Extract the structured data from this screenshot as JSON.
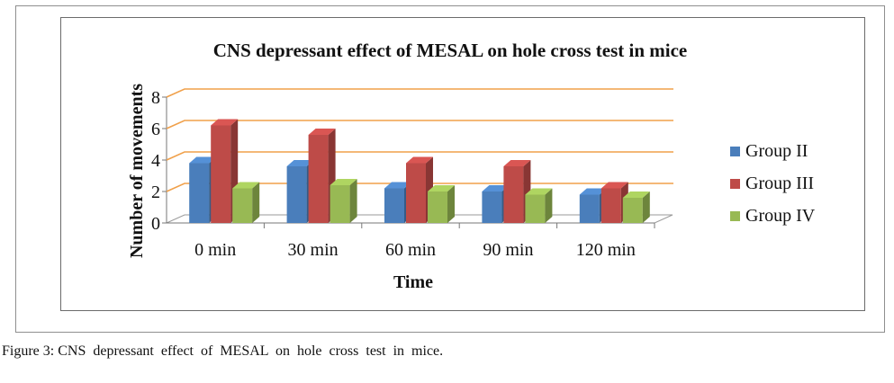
{
  "chart_data": {
    "type": "bar",
    "style": "3d-clustered",
    "title": "CNS depressant effect of MESAL on hole cross test in mice",
    "xlabel": "Time",
    "ylabel": "Number of movements",
    "categories": [
      "0 min",
      "30 min",
      "60 min",
      "90 min",
      "120 min"
    ],
    "series": [
      {
        "name": "Group II",
        "values": [
          3.8,
          3.6,
          2.2,
          2.0,
          1.8
        ],
        "color": "#4a7ebb"
      },
      {
        "name": "Group III",
        "values": [
          6.2,
          5.6,
          3.8,
          3.6,
          2.2
        ],
        "color": "#be4b48"
      },
      {
        "name": "Group IV",
        "values": [
          2.2,
          2.4,
          2.0,
          1.8,
          1.6
        ],
        "color": "#98b954"
      }
    ],
    "yticks": [
      0,
      2,
      4,
      6,
      8
    ],
    "ylim": [
      0,
      8
    ],
    "gridlines": true,
    "gridline_color": "#f0a04a",
    "legend_position": "right"
  },
  "caption": {
    "label": "Figure 3:",
    "text": "CNS depressant effect of MESAL on hole cross test in mice."
  }
}
